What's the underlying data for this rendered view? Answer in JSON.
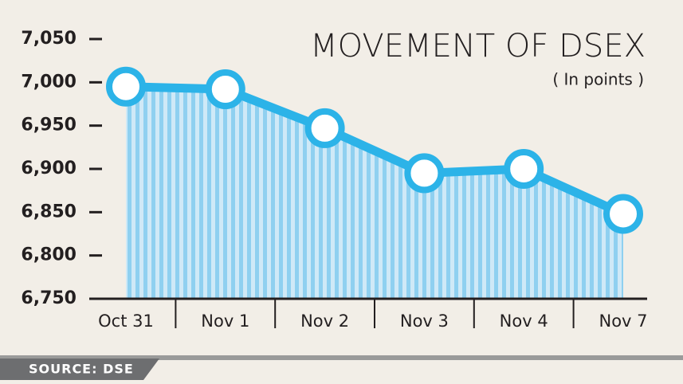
{
  "chart_data": {
    "type": "line",
    "title": "MOVEMENT OF DSEX",
    "subtitle": "( In points )",
    "source": "SOURCE: DSE",
    "categories": [
      "Oct 31",
      "Nov 1",
      "Nov 2",
      "Nov 3",
      "Nov 4",
      "Nov 7"
    ],
    "values": [
      6995,
      6992,
      6947,
      6895,
      6900,
      6848
    ],
    "color": "#2cb3e8",
    "ylim": [
      6750,
      7050
    ],
    "yticks": [
      {
        "value": 6750,
        "label": "6,750"
      },
      {
        "value": 6800,
        "label": "6,800"
      },
      {
        "value": 6850,
        "label": "6,850"
      },
      {
        "value": 6900,
        "label": "6,900"
      },
      {
        "value": 6950,
        "label": "6,950"
      },
      {
        "value": 7000,
        "label": "7,000"
      },
      {
        "value": 7050,
        "label": "7,050"
      }
    ]
  }
}
